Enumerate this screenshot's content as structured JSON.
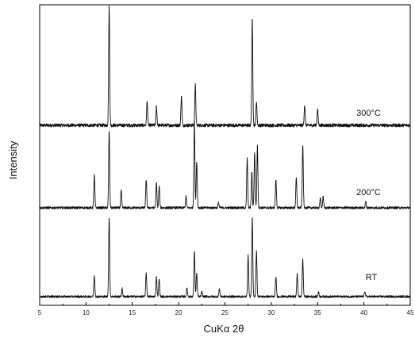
{
  "chart_data": {
    "type": "line",
    "title": "",
    "xlabel": "CuKα 2θ",
    "ylabel": "Intensity",
    "xlim": [
      5,
      45
    ],
    "x_ticks": [
      5,
      10,
      15,
      20,
      25,
      30,
      35,
      40,
      45
    ],
    "y_ticks_shown": false,
    "grid": false,
    "legend": "none",
    "series": [
      {
        "name": "300°C",
        "label_at_x": 40.5,
        "baseline": 0.02,
        "peaks": [
          [
            12.5,
            1.0
          ],
          [
            16.6,
            0.2
          ],
          [
            17.6,
            0.16
          ],
          [
            20.3,
            0.25
          ],
          [
            21.8,
            0.34
          ],
          [
            27.95,
            0.9
          ],
          [
            28.4,
            0.2
          ],
          [
            33.6,
            0.17
          ],
          [
            35.0,
            0.14
          ]
        ]
      },
      {
        "name": "200°C",
        "label_at_x": 40.5,
        "baseline": 0.02,
        "peaks": [
          [
            10.9,
            0.38
          ],
          [
            12.5,
            0.9
          ],
          [
            13.8,
            0.2
          ],
          [
            16.5,
            0.33
          ],
          [
            17.6,
            0.29
          ],
          [
            17.9,
            0.25
          ],
          [
            20.8,
            0.13
          ],
          [
            21.7,
            1.0
          ],
          [
            21.95,
            0.55
          ],
          [
            24.3,
            0.06
          ],
          [
            27.4,
            0.58
          ],
          [
            27.9,
            0.42
          ],
          [
            28.2,
            0.65
          ],
          [
            28.5,
            0.72
          ],
          [
            30.5,
            0.33
          ],
          [
            32.7,
            0.35
          ],
          [
            33.4,
            0.73
          ],
          [
            35.3,
            0.11
          ],
          [
            35.6,
            0.13
          ],
          [
            40.2,
            0.07
          ]
        ]
      },
      {
        "name": "RT",
        "label_at_x": 40.8,
        "baseline": 0.02,
        "peaks": [
          [
            10.9,
            0.26
          ],
          [
            12.5,
            1.0
          ],
          [
            13.9,
            0.1
          ],
          [
            16.5,
            0.3
          ],
          [
            17.6,
            0.25
          ],
          [
            17.9,
            0.22
          ],
          [
            20.9,
            0.11
          ],
          [
            21.7,
            0.58
          ],
          [
            21.95,
            0.3
          ],
          [
            22.5,
            0.06
          ],
          [
            24.4,
            0.1
          ],
          [
            27.5,
            0.52
          ],
          [
            27.95,
            1.0
          ],
          [
            28.4,
            0.58
          ],
          [
            30.5,
            0.25
          ],
          [
            32.8,
            0.28
          ],
          [
            33.4,
            0.47
          ],
          [
            35.1,
            0.06
          ],
          [
            40.1,
            0.07
          ]
        ]
      }
    ]
  }
}
